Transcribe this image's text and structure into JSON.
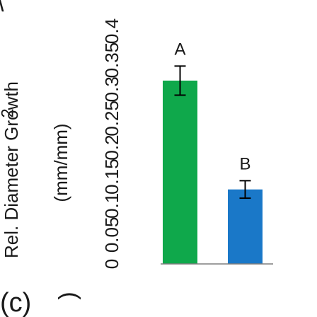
{
  "panel_label": "(c)",
  "fragments": {
    "left_edge": "\\",
    "right_edge": ")",
    "bottom_left": "2",
    "bottom_right": "_"
  },
  "chart_data": {
    "type": "bar",
    "orientation": "vertical",
    "ylabel": "Rel. Diameter Growth",
    "ylabel_unit": "(mm/mm)",
    "ylim": [
      0,
      0.4
    ],
    "yticks": [
      0,
      0.05,
      0.1,
      0.15,
      0.2,
      0.25,
      0.3,
      0.35,
      0.4
    ],
    "ytick_labels": [
      "0",
      "0.05",
      "0.1",
      "0.15",
      "0.2",
      "0.25",
      "0.3",
      "0.35",
      "0.4"
    ],
    "categories": [
      "",
      ""
    ],
    "values": [
      0.315,
      0.128
    ],
    "errors": [
      0.025,
      0.015
    ],
    "bar_labels": [
      "A",
      "B"
    ],
    "colors": [
      "#0fa84b",
      "#1a78c8"
    ],
    "grid": false,
    "legend": "none"
  }
}
